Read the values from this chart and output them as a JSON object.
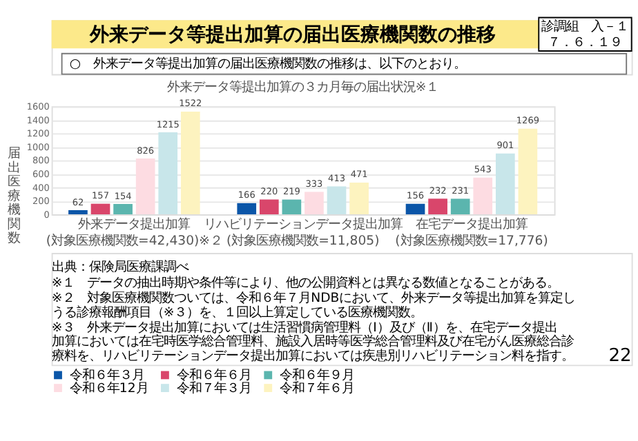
{
  "chart_data": {
    "type": "bar",
    "title": "外来データ等提出加算の届出医療機関数の推移",
    "subtitle": "○　外来データ等提出加算の届出医療機関数の推移は、以下のとおり。",
    "xlabel": "外来データ等提出加算の３カ月毎の届出状況※１",
    "ylabel": "届出医療機関数",
    "categories": [
      "外来データ提出加算\n(対象医療機関数=42,430)※２",
      "リハビリテーションデータ提出加算\n(対象医療機関数=11,805)",
      "在宅データ提出加算\n(対象医療機関数=17,776)"
    ],
    "series": [
      {
        "name": "令和６年３月",
        "color": "#0b56a8",
        "values": [
          62,
          166,
          156
        ]
      },
      {
        "name": "令和６年６月",
        "color": "#d9466b",
        "values": [
          157,
          220,
          232
        ]
      },
      {
        "name": "令和６年９月",
        "color": "#5bb5ae",
        "values": [
          154,
          219,
          231
        ]
      },
      {
        "name": "令和６年12月",
        "color": "#fddce2",
        "values": [
          826,
          333,
          543
        ]
      },
      {
        "name": "令和７年３月",
        "color": "#c8e6ea",
        "values": [
          1215,
          413,
          901
        ]
      },
      {
        "name": "令和７年６月",
        "color": "#fdf3bf",
        "values": [
          1522,
          471,
          1269
        ]
      }
    ],
    "ylim": [
      0,
      1600
    ],
    "yticks": [
      0,
      200,
      400,
      600,
      800,
      1000,
      1200,
      1400,
      1600
    ],
    "grid": "y",
    "legend": "bottom",
    "data_labels": true,
    "annotations": [
      "診調組　入－１",
      "７．６．１９",
      "出典：保険局医療課調べ",
      "※１　データの抽出時期や条件等により、他の公開資料とは異なる数値となることがある。",
      "※２　対象医療機関数ついては、令和６年７月NDBにおいて、外来データ等提出加算を算定しうる診療報酬項目（※３）を、１回以上算定している医療機関数。",
      "※３　外来データ提出加算においては生活習慣病管理料（Ⅰ）及び（Ⅱ）を、在宅データ提出加算においては在宅時医学総合管理料、施設入居時等医学総合管理料及び在宅がん医療総合診療料を、リハビリテーションデータ提出加算においては疾患別リハビリテーション料を指す。",
      "22"
    ]
  }
}
